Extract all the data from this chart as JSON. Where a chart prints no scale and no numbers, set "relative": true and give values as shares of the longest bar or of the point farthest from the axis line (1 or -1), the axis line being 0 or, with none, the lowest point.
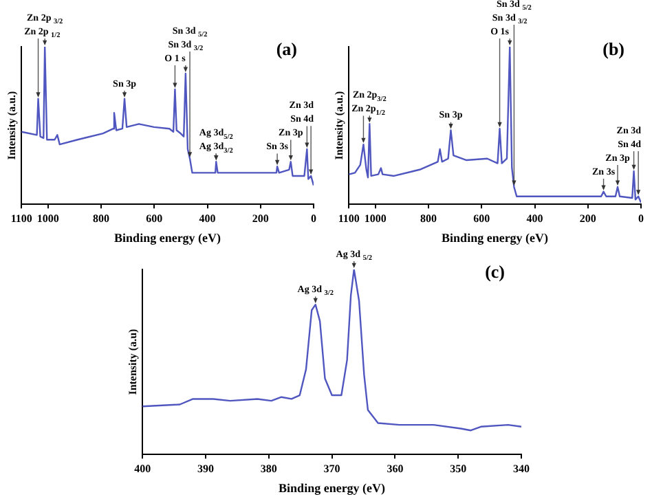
{
  "chart_data": [
    {
      "type": "line",
      "title": "(a)",
      "xlabel": "Binding energy (eV)",
      "ylabel": "Intensity (a.u.)",
      "relative": true,
      "grid": false,
      "legend": false,
      "marker": "none",
      "xlim": [
        1100,
        0
      ],
      "xticks": [
        1100,
        1000,
        800,
        600,
        400,
        200,
        0
      ],
      "series": [
        {
          "color": "#5056c0",
          "x": [
            1100,
            1042,
            1037,
            1029,
            1017,
            1012,
            1004,
            975,
            965,
            956,
            889,
            793,
            754,
            751,
            743,
            720,
            712,
            704,
            658,
            601,
            543,
            528,
            522,
            516,
            501,
            489,
            482,
            474,
            466,
            457,
            409,
            370,
            367,
            361,
            217,
            140,
            137,
            130,
            92,
            86,
            79,
            35,
            25,
            20,
            10,
            0
          ],
          "values": [
            0.46,
            0.44,
            0.67,
            0.43,
            0.42,
            1,
            0.41,
            0.41,
            0.44,
            0.38,
            0.41,
            0.45,
            0.48,
            0.58,
            0.47,
            0.48,
            0.67,
            0.49,
            0.51,
            0.49,
            0.48,
            0.46,
            0.73,
            0.47,
            0.45,
            0.43,
            0.83,
            0.35,
            0.29,
            0.2,
            0.2,
            0.2,
            0.27,
            0.2,
            0.2,
            0.2,
            0.24,
            0.2,
            0.22,
            0.27,
            0.18,
            0.18,
            0.35,
            0.16,
            0.18,
            0.12
          ]
        }
      ],
      "annotations": [
        {
          "text": "Zn 2p $_{1/2}$",
          "x": 1037,
          "y": 0.67
        },
        {
          "text": "Zn 2p $_{3/2}$",
          "x": 1012,
          "y": 1
        },
        {
          "text": "Sn 3p",
          "x": 712,
          "y": 0.67
        },
        {
          "text": "O 1 s",
          "x": 522,
          "y": 0.73
        },
        {
          "text": "Sn 3d $_{3/2}$",
          "x": 482,
          "y": 0.83
        },
        {
          "text": "Sn 3d $_{5/2}$",
          "x": 466,
          "y": 0.29
        },
        {
          "text": "Ag 3d$_{3/2}$",
          "x": 367,
          "y": 0.27
        },
        {
          "text": "Ag 3d$_{5/2}$",
          "x": 367,
          "y": 0.27
        },
        {
          "text": "Sn 3s",
          "x": 137,
          "y": 0.24
        },
        {
          "text": "Zn 3p",
          "x": 86,
          "y": 0.27
        },
        {
          "text": "Sn 4d",
          "x": 25,
          "y": 0.35
        },
        {
          "text": "Zn 3d",
          "x": 10,
          "y": 0.18
        }
      ]
    },
    {
      "type": "line",
      "title": "(b)",
      "xlabel": "Binding energy (eV)",
      "ylabel": "Intensity (a.u.)",
      "relative": true,
      "grid": false,
      "legend": false,
      "marker": "none",
      "xlim": [
        1100,
        0
      ],
      "xticks": [
        1100,
        1000,
        800,
        600,
        400,
        200,
        0
      ],
      "series": [
        {
          "color": "#5056c0",
          "x": [
            1100,
            1077,
            1057,
            1045,
            1034,
            1028,
            1022,
            1016,
            989,
            979,
            973,
            930,
            833,
            765,
            757,
            749,
            726,
            716,
            706,
            657,
            579,
            540,
            532,
            524,
            505,
            494,
            486,
            478,
            468,
            345,
            150,
            141,
            131,
            96,
            88,
            80,
            33,
            27,
            21,
            10,
            0
          ],
          "values": [
            0.19,
            0.2,
            0.25,
            0.38,
            0.22,
            0.17,
            0.51,
            0.18,
            0.19,
            0.23,
            0.19,
            0.18,
            0.22,
            0.27,
            0.35,
            0.27,
            0.29,
            0.47,
            0.31,
            0.28,
            0.29,
            0.26,
            0.48,
            0.26,
            0.29,
            1,
            0.23,
            0.11,
            0.05,
            0.05,
            0.05,
            0.08,
            0.05,
            0.05,
            0.11,
            0.05,
            0.04,
            0.21,
            0.03,
            0.05,
            0.01
          ]
        }
      ],
      "annotations": [
        {
          "text": "Zn 2p$_{1/2}$",
          "x": 1045,
          "y": 0.38
        },
        {
          "text": "Zn 2p$_{3/2}$",
          "x": 1022,
          "y": 0.51
        },
        {
          "text": "Sn 3p",
          "x": 716,
          "y": 0.47
        },
        {
          "text": "O 1s",
          "x": 532,
          "y": 0.48
        },
        {
          "text": "Sn 3d $_{3/2}$",
          "x": 494,
          "y": 1
        },
        {
          "text": "Sn 3d $_{5/2}$",
          "x": 478,
          "y": 0.11
        },
        {
          "text": "Zn 3s",
          "x": 141,
          "y": 0.08
        },
        {
          "text": "Zn 3p",
          "x": 88,
          "y": 0.11
        },
        {
          "text": "Sn 4d",
          "x": 27,
          "y": 0.21
        },
        {
          "text": "Zn 3d",
          "x": 10,
          "y": 0.05
        }
      ]
    },
    {
      "type": "line",
      "title": "(c)",
      "xlabel": "Binding energy (eV)",
      "ylabel": "Intensity (a.u)",
      "relative": true,
      "grid": false,
      "legend": false,
      "marker": "none",
      "xlim": [
        400,
        340
      ],
      "xticks": [
        400,
        390,
        380,
        370,
        360,
        350,
        340
      ],
      "series": [
        {
          "color": "#5056c0",
          "x": [
            400,
            394.1,
            392,
            388.8,
            386.1,
            381.8,
            379.6,
            378,
            376.4,
            375.1,
            374.1,
            373.2,
            372.6,
            371.9,
            371.1,
            370,
            368.5,
            367.6,
            367,
            366.5,
            365.7,
            364.9,
            364.3,
            362.7,
            359.3,
            357.1,
            353.9,
            349.6,
            348,
            346.4,
            342.1,
            340
          ],
          "values": [
            0.26,
            0.27,
            0.3,
            0.3,
            0.29,
            0.3,
            0.29,
            0.31,
            0.3,
            0.32,
            0.46,
            0.78,
            0.81,
            0.72,
            0.41,
            0.32,
            0.32,
            0.51,
            0.86,
            1,
            0.83,
            0.43,
            0.24,
            0.17,
            0.16,
            0.16,
            0.16,
            0.14,
            0.13,
            0.15,
            0.16,
            0.15
          ]
        }
      ],
      "annotations": [
        {
          "text": "Ag 3d $_{3/2}$",
          "x": 372.6,
          "y": 0.81
        },
        {
          "text": "Ag 3d $_{5/2}$",
          "x": 366.5,
          "y": 1
        }
      ]
    }
  ]
}
